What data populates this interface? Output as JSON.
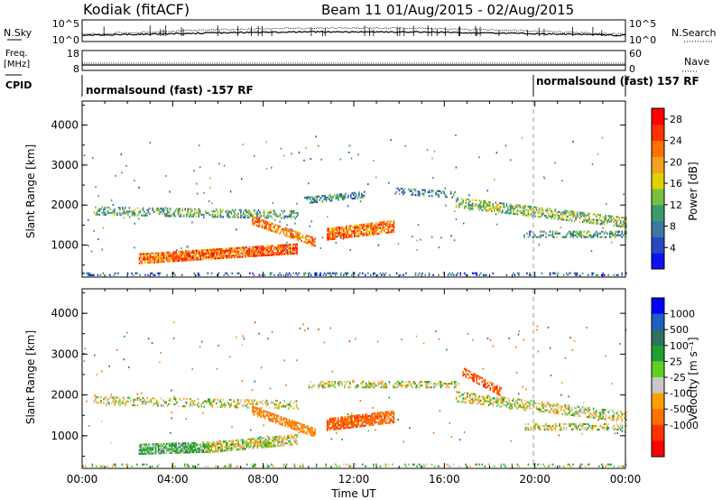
{
  "header": {
    "station": "Kodiak (fitACF)",
    "beam_date": "Beam 11 01/Aug/2015 - 02/Aug/2015"
  },
  "side_labels": {
    "nsky": "N.Sky",
    "nsearch": "N.Search",
    "freq": "Freq.",
    "mhz": "[MHz]",
    "cpid": "CPID",
    "nave": "Nave"
  },
  "scales": {
    "noise_top": "10^5",
    "noise_bottom": "10^0",
    "freq_top": "18",
    "freq_bottom": "8",
    "nave_top": "60",
    "nave_bottom": "0"
  },
  "cpid_segments": [
    {
      "text": "normalsound (fast) -157 RF"
    },
    {
      "text": "normalsound (fast) 157 RF"
    }
  ],
  "colors": {
    "noise_line": "#000000",
    "power_scale": [
      "#1010f0",
      "#2848c0",
      "#3c78a0",
      "#3a9a70",
      "#78c040",
      "#e0d000",
      "#f5a020",
      "#ff7000",
      "#ff3000",
      "#ff0000"
    ],
    "velocity_scale": [
      "#0000ff",
      "#2060c0",
      "#307060",
      "#20a030",
      "#60d020",
      "#c8c8c8",
      "#ffa000",
      "#ff7000",
      "#ff3000",
      "#ff0000"
    ]
  },
  "chart_data": [
    {
      "type": "heatmap",
      "panel": "power",
      "xlabel": "",
      "ylabel": "Slant Range [km]",
      "xlim": [
        "00:00",
        "24:00"
      ],
      "ylim": [
        200,
        4600
      ],
      "yticks": [
        1000,
        2000,
        3000,
        4000
      ],
      "colorbar": {
        "label": "Power [dB]",
        "ticks": [
          4,
          8,
          12,
          16,
          20,
          24,
          28
        ],
        "range": [
          0,
          30
        ]
      },
      "echo_bands": [
        {
          "start_h": 0.5,
          "end_h": 9.5,
          "range_km": 1900,
          "range_end_km": 1800,
          "width_km": 220,
          "density": 0.45,
          "dB": 11
        },
        {
          "start_h": 2.5,
          "end_h": 9.5,
          "range_km": 700,
          "range_end_km": 950,
          "width_km": 260,
          "density": 0.85,
          "dB": 23
        },
        {
          "start_h": 7.5,
          "end_h": 10.3,
          "range_km": 1650,
          "range_end_km": 1100,
          "width_km": 200,
          "density": 0.75,
          "dB": 21
        },
        {
          "start_h": 10.8,
          "end_h": 13.8,
          "range_km": 1300,
          "range_end_km": 1500,
          "width_km": 280,
          "density": 0.75,
          "dB": 22
        },
        {
          "start_h": 13.8,
          "end_h": 16.5,
          "range_km": 2400,
          "range_end_km": 2300,
          "width_km": 180,
          "density": 0.4,
          "dB": 8
        },
        {
          "start_h": 9.8,
          "end_h": 12.5,
          "range_km": 2150,
          "range_end_km": 2300,
          "width_km": 160,
          "density": 0.45,
          "dB": 9
        },
        {
          "start_h": 16.5,
          "end_h": 24.0,
          "range_km": 2100,
          "range_end_km": 1600,
          "width_km": 250,
          "density": 0.55,
          "dB": 13
        },
        {
          "start_h": 19.5,
          "end_h": 24.0,
          "range_km": 1300,
          "range_end_km": 1300,
          "width_km": 150,
          "density": 0.45,
          "dB": 10
        },
        {
          "start_h": 0.0,
          "end_h": 24.0,
          "range_km": 320,
          "range_end_km": 320,
          "width_km": 90,
          "density": 0.25,
          "dB": 6
        }
      ]
    },
    {
      "type": "heatmap",
      "panel": "velocity",
      "xlabel": "Time UT",
      "ylabel": "Slant Range [km]",
      "xlim": [
        "00:00",
        "24:00"
      ],
      "ylim": [
        200,
        4600
      ],
      "yticks": [
        1000,
        2000,
        3000,
        4000
      ],
      "xticks": [
        "00:00",
        "04:00",
        "08:00",
        "12:00",
        "16:00",
        "20:00",
        "00:00"
      ],
      "colorbar": {
        "label": "Velocity [m s⁻¹]",
        "ticks": [
          "1000",
          "500",
          "100",
          "25",
          "-25",
          "-100",
          "-500",
          "-1000"
        ],
        "range": [
          -1000,
          1000
        ]
      },
      "echo_bands": [
        {
          "start_h": 0.5,
          "end_h": 9.5,
          "range_km": 1900,
          "range_end_km": 1800,
          "width_km": 220,
          "density": 0.4,
          "v": 0
        },
        {
          "start_h": 2.5,
          "end_h": 5.5,
          "range_km": 700,
          "range_end_km": 750,
          "width_km": 240,
          "density": 0.85,
          "v": 80
        },
        {
          "start_h": 5.5,
          "end_h": 9.5,
          "range_km": 750,
          "range_end_km": 950,
          "width_km": 260,
          "density": 0.7,
          "v": 0
        },
        {
          "start_h": 7.5,
          "end_h": 10.3,
          "range_km": 1650,
          "range_end_km": 1100,
          "width_km": 200,
          "density": 0.7,
          "v": -150
        },
        {
          "start_h": 10.8,
          "end_h": 13.8,
          "range_km": 1300,
          "range_end_km": 1500,
          "width_km": 280,
          "density": 0.8,
          "v": -450
        },
        {
          "start_h": 10.0,
          "end_h": 16.5,
          "range_km": 2300,
          "range_end_km": 2300,
          "width_km": 180,
          "density": 0.45,
          "v": 0
        },
        {
          "start_h": 16.8,
          "end_h": 18.5,
          "range_km": 2600,
          "range_end_km": 2100,
          "width_km": 200,
          "density": 0.55,
          "v": -500
        },
        {
          "start_h": 16.5,
          "end_h": 24.0,
          "range_km": 2000,
          "range_end_km": 1500,
          "width_km": 260,
          "density": 0.5,
          "v": 0
        },
        {
          "start_h": 19.5,
          "end_h": 24.0,
          "range_km": 1250,
          "range_end_km": 1250,
          "width_km": 150,
          "density": 0.45,
          "v": 0
        },
        {
          "start_h": 0.0,
          "end_h": 24.0,
          "range_km": 320,
          "range_end_km": 320,
          "width_km": 90,
          "density": 0.2,
          "v": 40
        }
      ]
    }
  ]
}
